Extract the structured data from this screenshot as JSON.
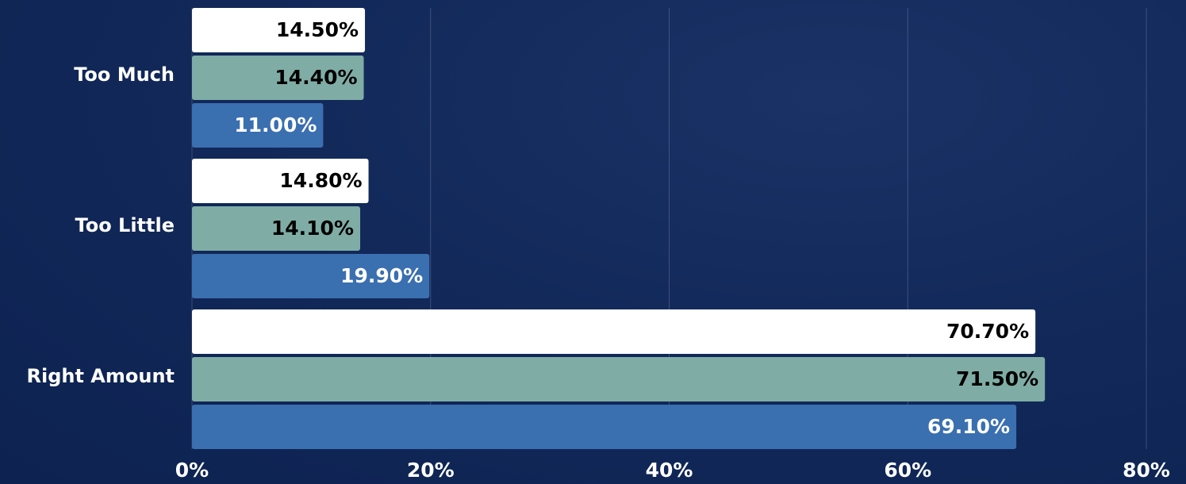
{
  "chart_data": {
    "type": "barh",
    "categories": [
      "Too Much",
      "Too Little",
      "Right Amount"
    ],
    "series": [
      {
        "color": "#ffffff",
        "values": [
          14.5,
          14.8,
          70.7
        ],
        "value_labels": [
          "14.50%",
          "14.80%",
          "70.70%"
        ]
      },
      {
        "color": "#7fada5",
        "values": [
          14.4,
          14.1,
          71.5
        ],
        "value_labels": [
          "14.40%",
          "14.10%",
          "71.50%"
        ]
      },
      {
        "color": "#3a6fb0",
        "values": [
          11.0,
          19.9,
          69.1
        ],
        "value_labels": [
          "11.00%",
          "19.90%",
          "69.10%"
        ]
      }
    ],
    "xlim": [
      0,
      80
    ],
    "xticks": [
      {
        "value": 0,
        "label": "0%"
      },
      {
        "value": 20,
        "label": "20%"
      },
      {
        "value": 40,
        "label": "40%"
      },
      {
        "value": 60,
        "label": "60%"
      },
      {
        "value": 80,
        "label": "80%"
      }
    ],
    "grid": true
  }
}
